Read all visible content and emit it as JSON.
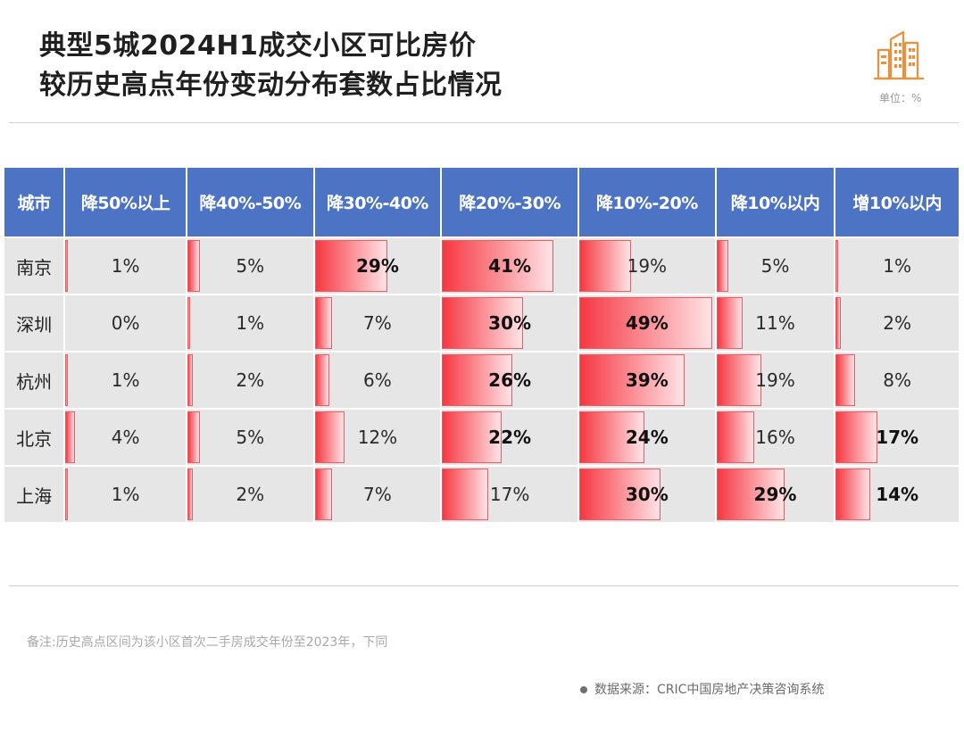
{
  "title": {
    "line1": "典型5城2024H1成交小区可比房价",
    "line2": "较历史高点年份变动分布套数占比情况"
  },
  "unit": "单位：%",
  "note": "备注:历史高点区间为该小区首次二手房成交年份至2023年，下同",
  "source": "数据来源：CRIC中国房地产决策咨询系统",
  "icon": "building-icon",
  "colors": {
    "header": "#4d73c4",
    "bar": "#f53842",
    "cell": "#e6e6e6"
  },
  "chart_data": {
    "type": "table",
    "columns": [
      "城市",
      "降50%以上",
      "降40%-50%",
      "降30%-40%",
      "降20%-30%",
      "降10%-20%",
      "降10%以内",
      "增10%以内"
    ],
    "rows": [
      {
        "city": "南京",
        "values": [
          1,
          5,
          29,
          41,
          19,
          5,
          1
        ],
        "labels": [
          "1%",
          "5%",
          "29%",
          "41%",
          "19%",
          "5%",
          "1%"
        ],
        "bold": [
          false,
          false,
          true,
          true,
          false,
          false,
          false
        ]
      },
      {
        "city": "深圳",
        "values": [
          0,
          1,
          7,
          30,
          49,
          11,
          2
        ],
        "labels": [
          "0%",
          "1%",
          "7%",
          "30%",
          "49%",
          "11%",
          "2%"
        ],
        "bold": [
          false,
          false,
          false,
          true,
          true,
          false,
          false
        ]
      },
      {
        "city": "杭州",
        "values": [
          1,
          2,
          6,
          26,
          39,
          19,
          8
        ],
        "labels": [
          "1%",
          "2%",
          "6%",
          "26%",
          "39%",
          "19%",
          "8%"
        ],
        "bold": [
          false,
          false,
          false,
          true,
          true,
          false,
          false
        ]
      },
      {
        "city": "北京",
        "values": [
          4,
          5,
          12,
          22,
          24,
          16,
          17
        ],
        "labels": [
          "4%",
          "5%",
          "12%",
          "22%",
          "24%",
          "16%",
          "17%"
        ],
        "bold": [
          false,
          false,
          false,
          true,
          true,
          false,
          true
        ]
      },
      {
        "city": "上海",
        "values": [
          1,
          2,
          7,
          17,
          30,
          29,
          14
        ],
        "labels": [
          "1%",
          "2%",
          "7%",
          "17%",
          "30%",
          "29%",
          "14%"
        ],
        "bold": [
          false,
          false,
          false,
          false,
          true,
          true,
          true
        ]
      }
    ],
    "value_max": 50
  }
}
